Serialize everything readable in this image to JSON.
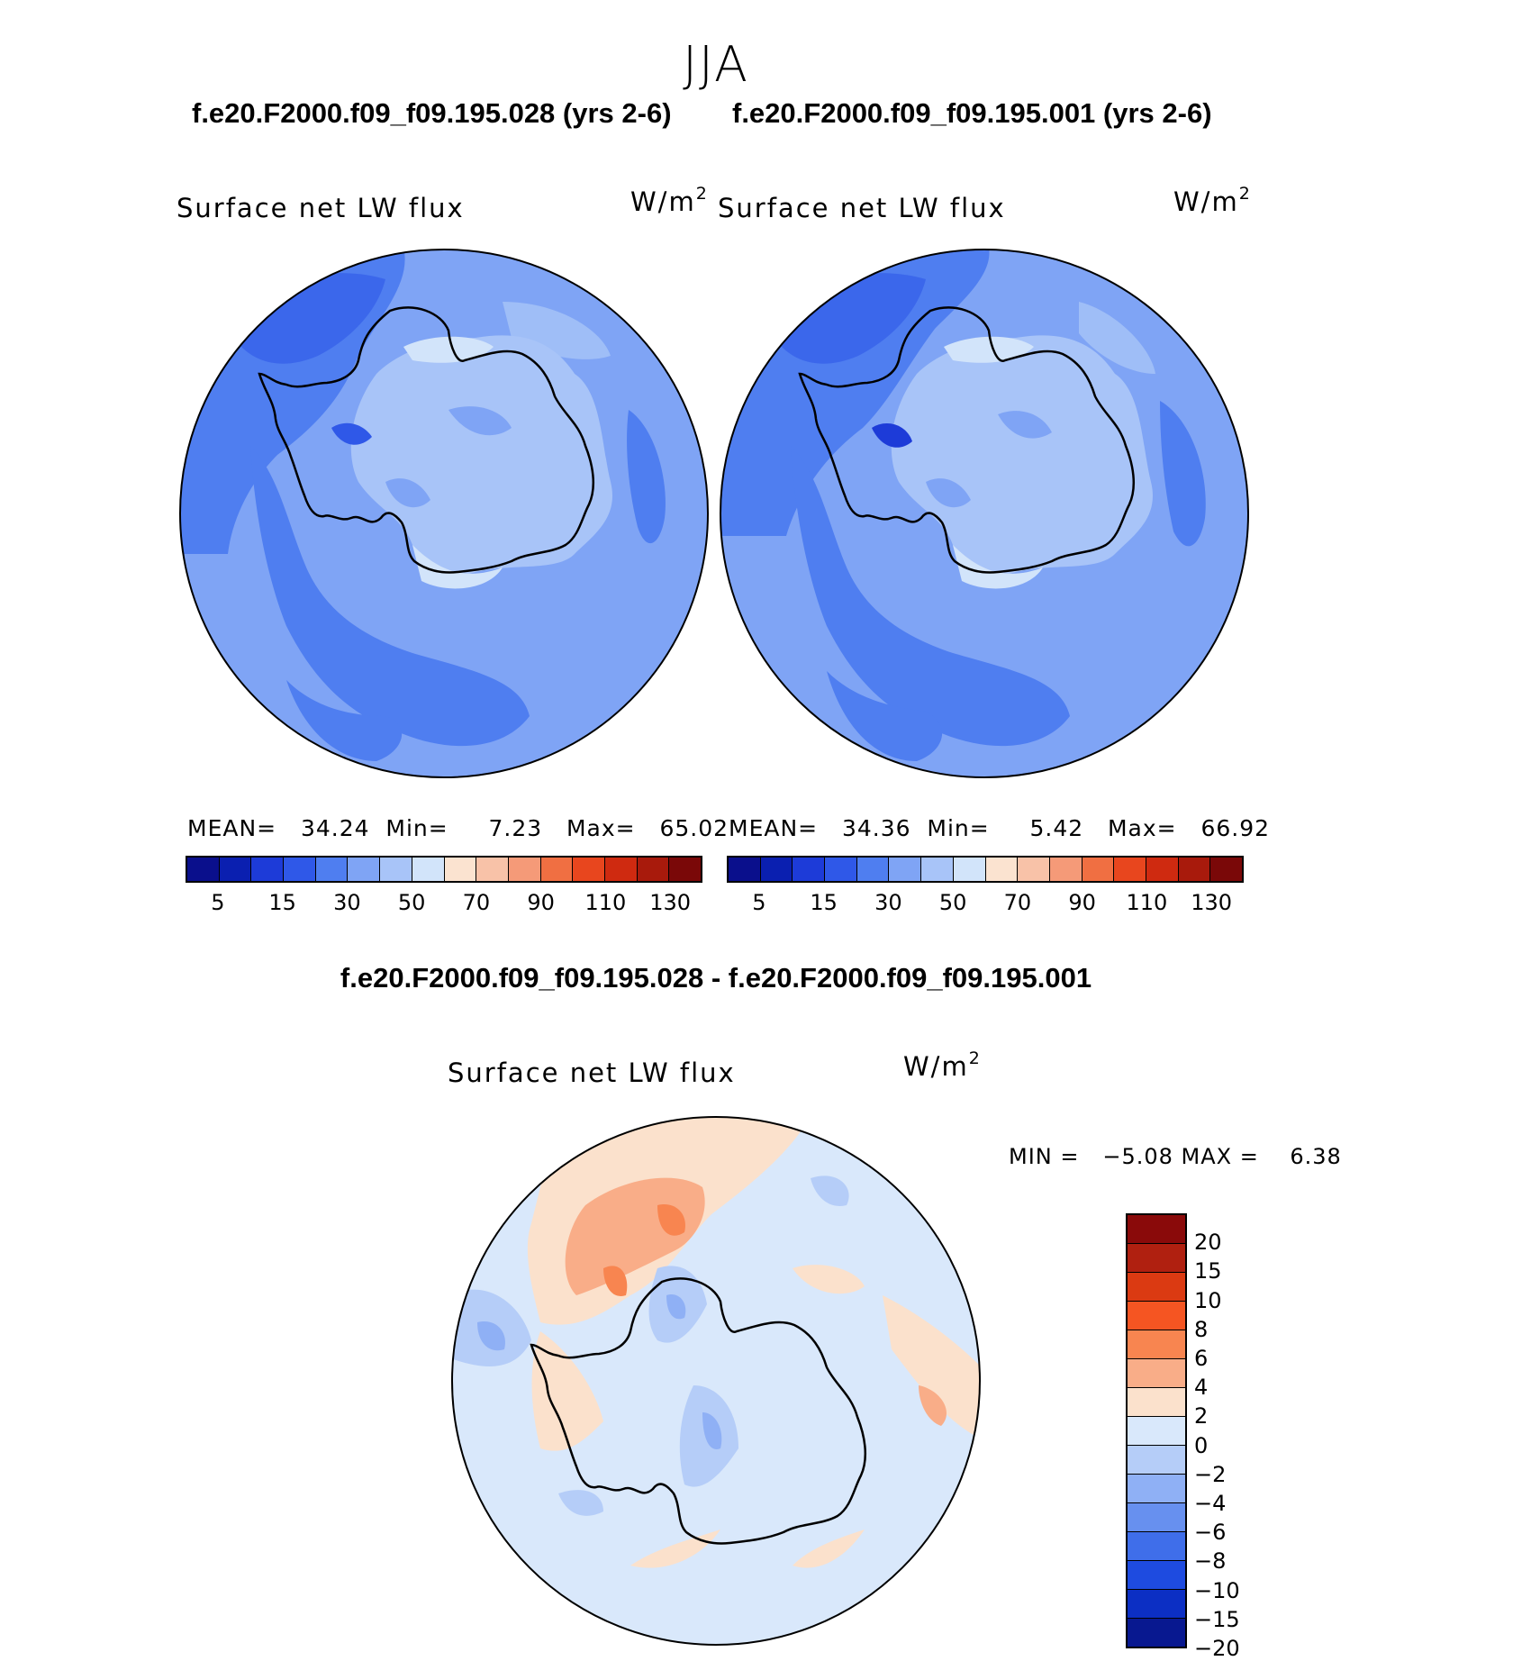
{
  "header": {
    "season": "JJA",
    "case_a_title": "f.e20.F2000.f09_f09.195.028 (yrs 2-6)",
    "case_b_title": "f.e20.F2000.f09_f09.195.001 (yrs 2-6)",
    "diff_title": "f.e20.F2000.f09_f09.195.028 - f.e20.F2000.f09_f09.195.001"
  },
  "panels": {
    "case_a": {
      "variable": "Surface net LW flux",
      "unit_base": "W/m",
      "unit_exp": "2",
      "stats_text": "MEAN=   34.24  Min=     7.23   Max=   65.02"
    },
    "case_b": {
      "variable": "Surface net LW flux",
      "unit_base": "W/m",
      "unit_exp": "2",
      "stats_text": "MEAN=   34.36  Min=     5.42   Max=   66.92"
    },
    "diff": {
      "variable": "Surface net LW flux",
      "unit_base": "W/m",
      "unit_exp": "2",
      "stats_text": "MIN =   −5.08 MAX =    6.38"
    }
  },
  "colorbar_abs": {
    "colors": [
      "#0a0f8c",
      "#0a1fb0",
      "#1d3bd8",
      "#2f58e8",
      "#4f7ef0",
      "#7fa4f5",
      "#a8c4f8",
      "#d2e4fa",
      "#fbe3d0",
      "#f8c2a8",
      "#f59a78",
      "#f06f42",
      "#e8461e",
      "#cf2a10",
      "#a81a0c",
      "#7a0808"
    ],
    "tick_labels": [
      "5",
      "15",
      "30",
      "50",
      "70",
      "90",
      "110",
      "130"
    ]
  },
  "colorbar_diff": {
    "colors_top_to_bottom": [
      "#8a0a0a",
      "#b02010",
      "#db3a12",
      "#f55522",
      "#f88550",
      "#f9ad88",
      "#fbe1cc",
      "#d9e8fb",
      "#b5cdf8",
      "#8fb0f5",
      "#6790ef",
      "#3f6eea",
      "#1e4be0",
      "#0c2fc4",
      "#081890"
    ],
    "tick_labels": [
      "20",
      "15",
      "10",
      "8",
      "6",
      "4",
      "2",
      "0",
      "−2",
      "−4",
      "−6",
      "−8",
      "−10",
      "−15",
      "−20"
    ]
  }
}
